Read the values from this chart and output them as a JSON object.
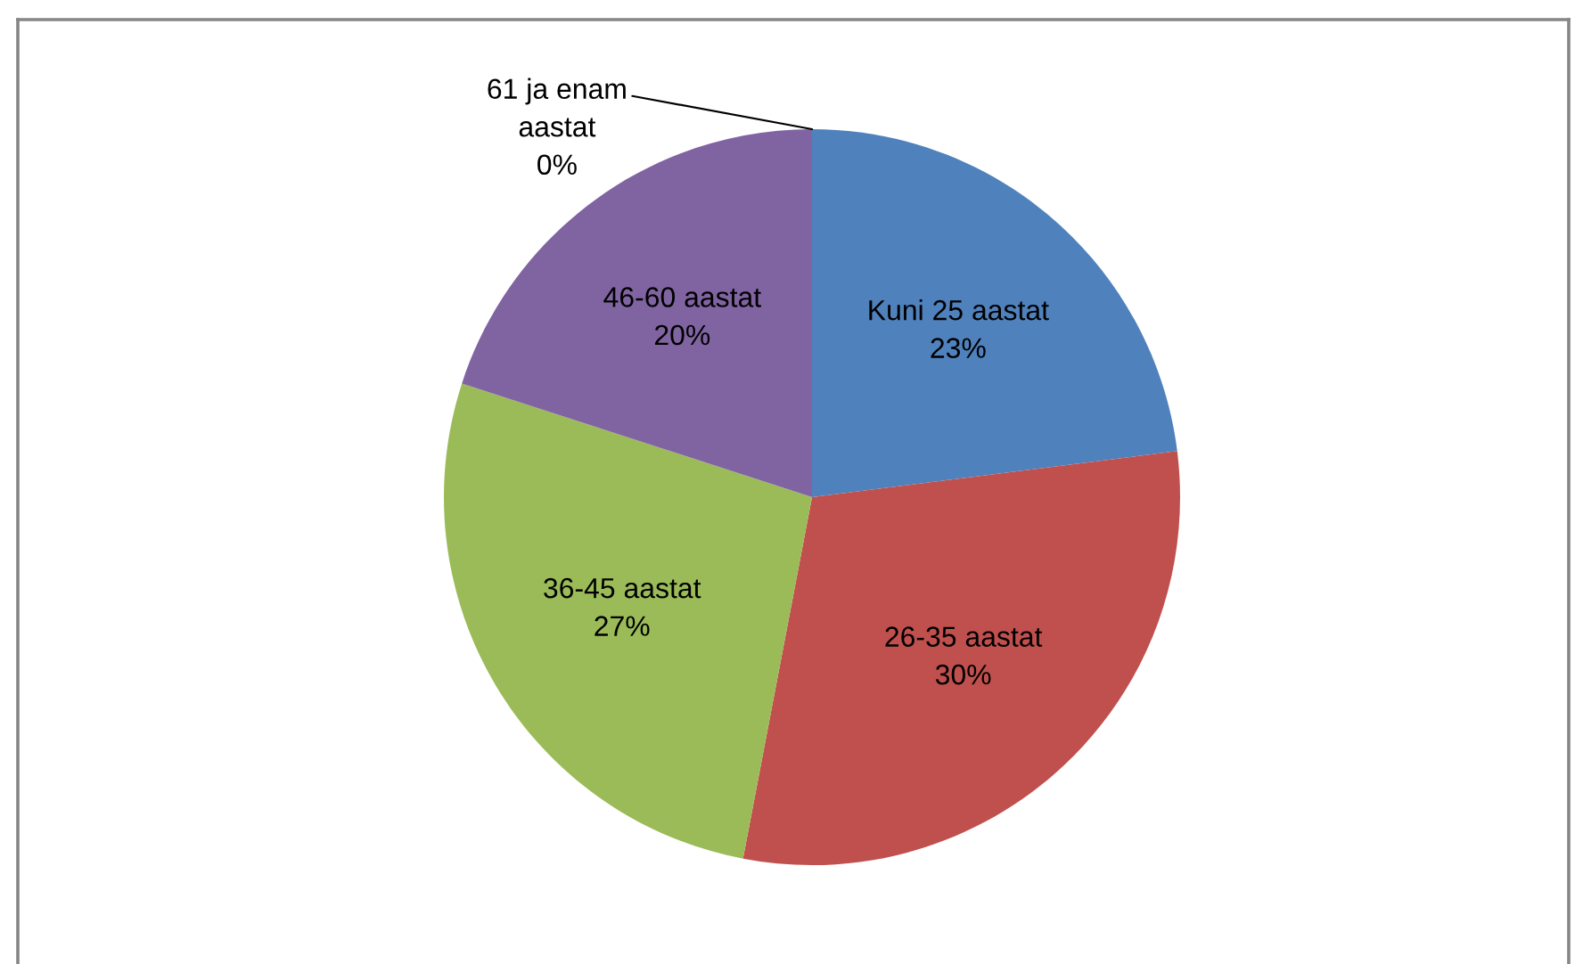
{
  "chart_data": {
    "type": "pie",
    "categories": [
      "Kuni 25 aastat",
      "26-35 aastat",
      "36-45 aastat",
      "46-60 aastat",
      "61 ja enam aastat"
    ],
    "values": [
      23,
      30,
      27,
      20,
      0
    ],
    "colors": [
      "#4f81bd",
      "#c0504d",
      "#9bbb59",
      "#8064a2",
      "#4bacc6"
    ],
    "value_labels": [
      "23%",
      "30%",
      "27%",
      "20%",
      "0%"
    ]
  }
}
